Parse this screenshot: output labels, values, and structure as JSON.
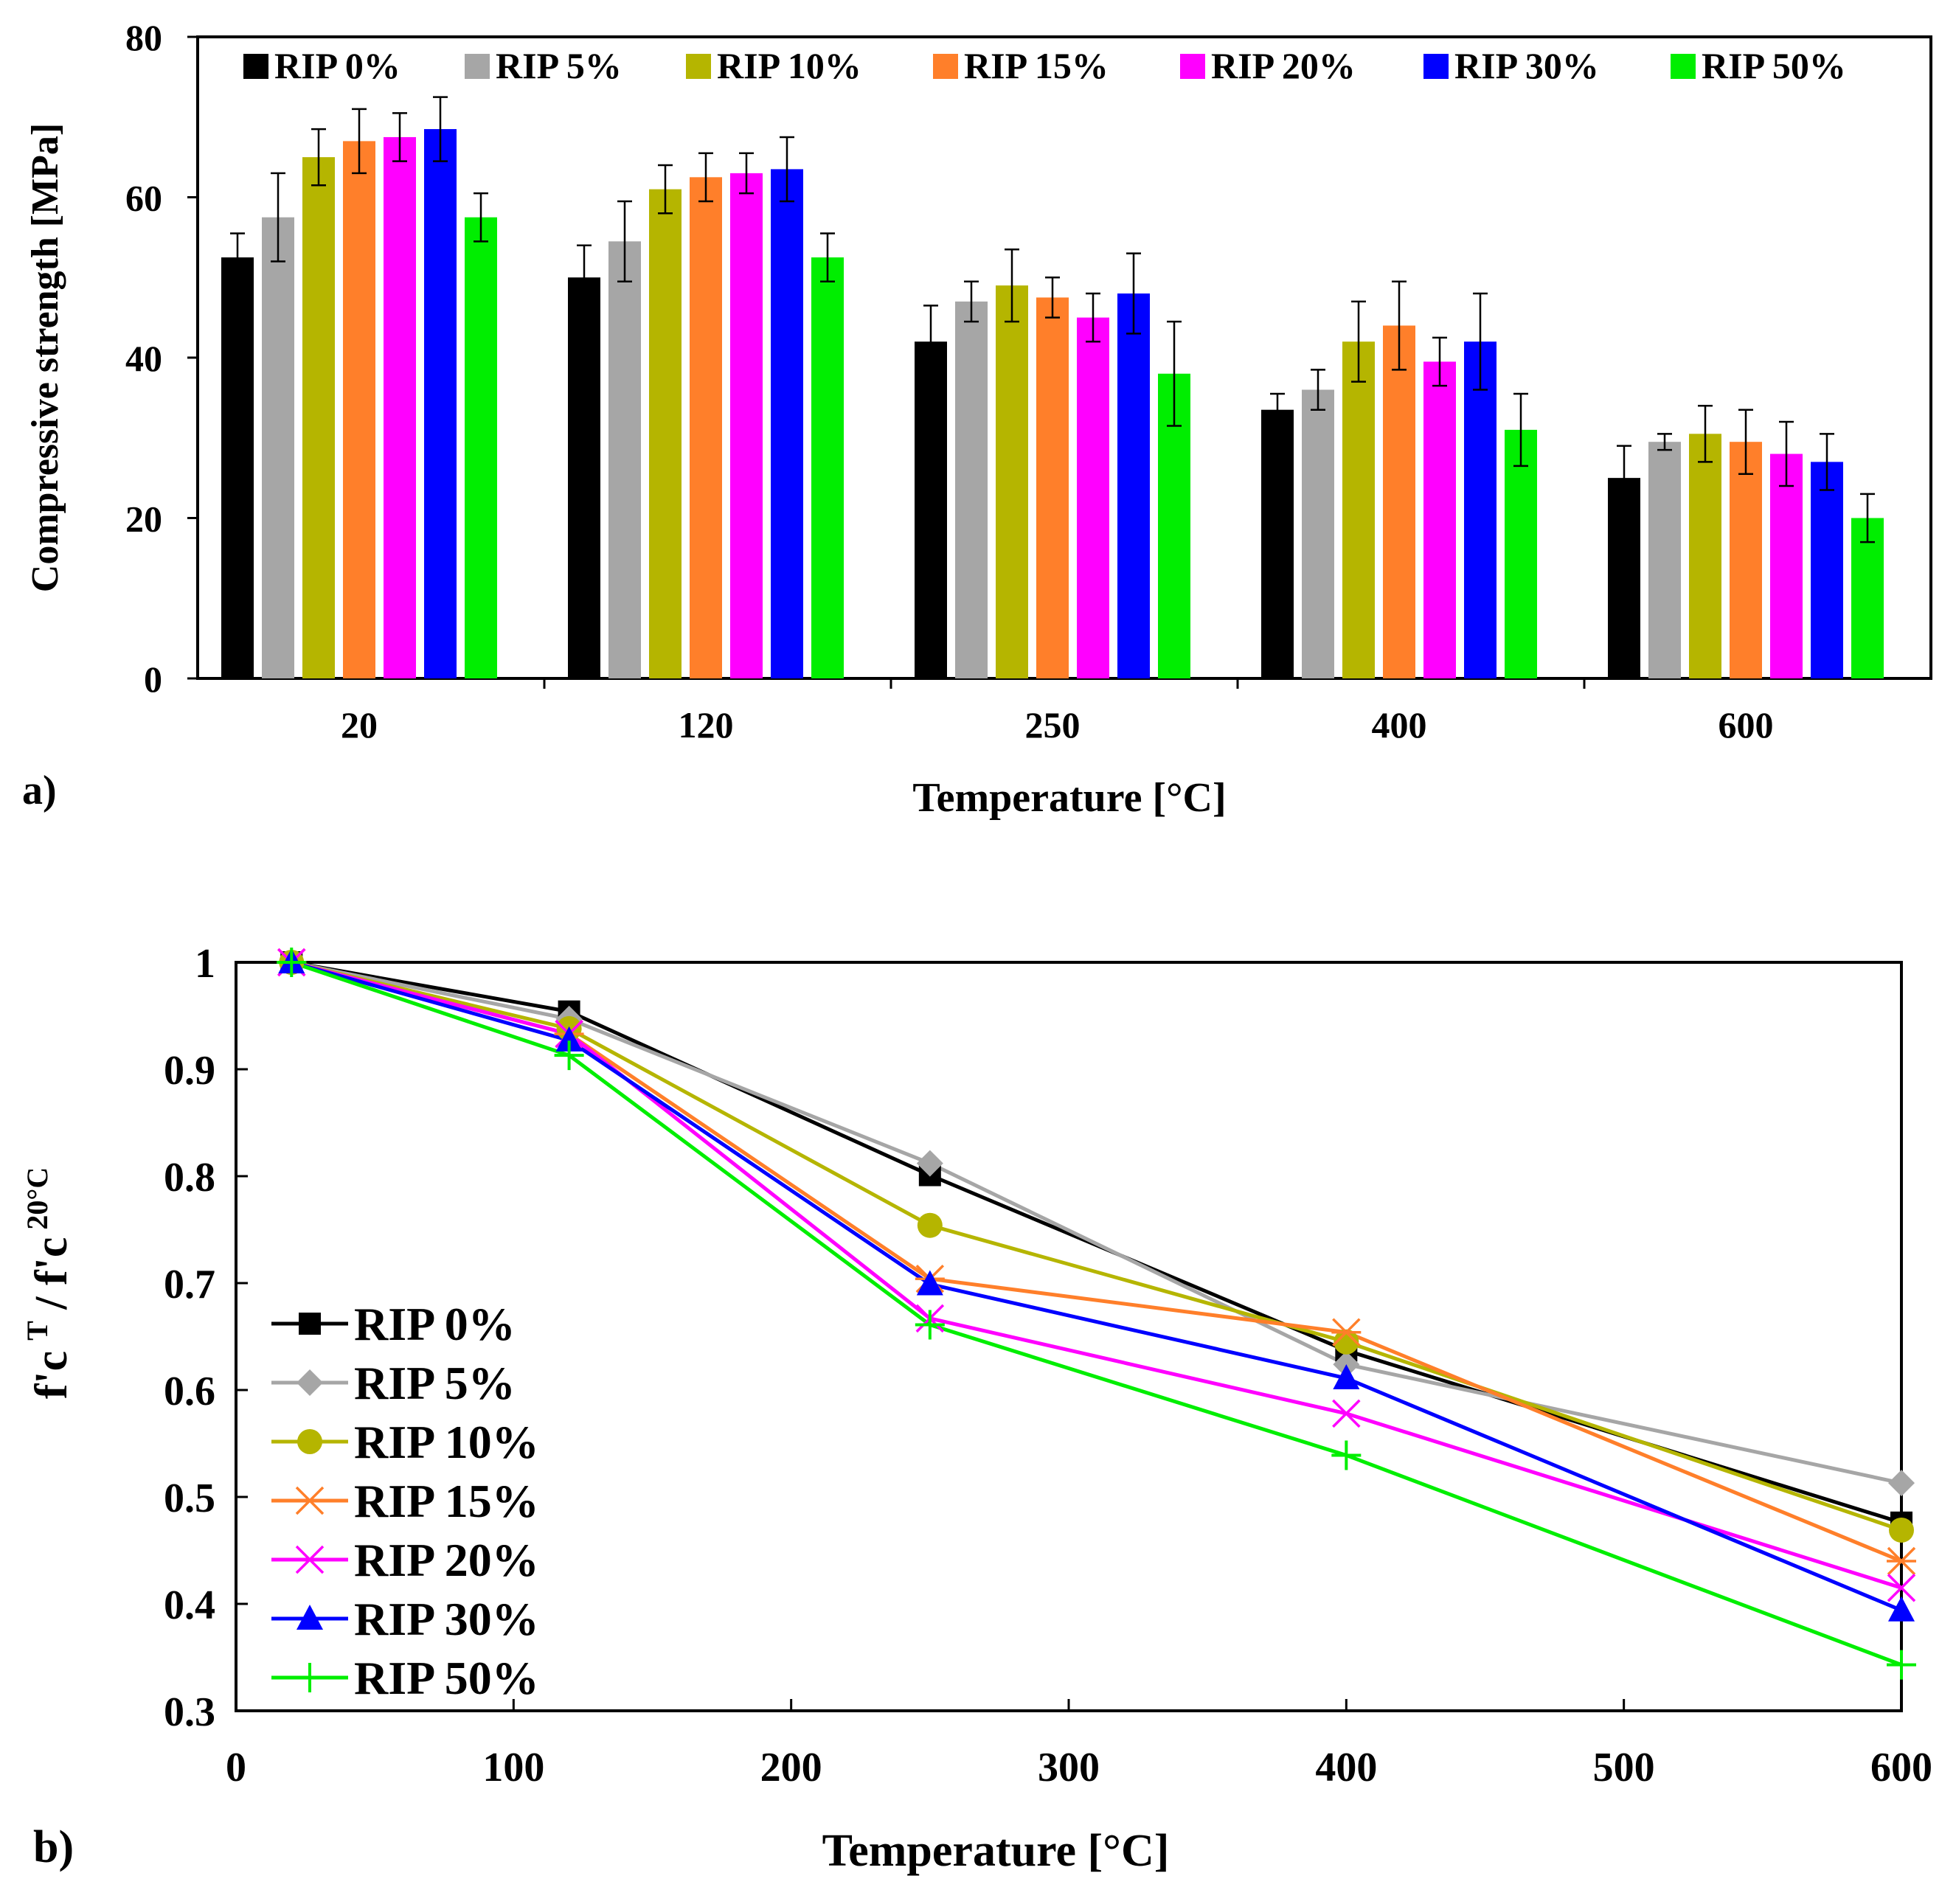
{
  "chart_data": [
    {
      "panel_label": "a)",
      "type": "bar",
      "xlabel": "Temperature [°C]",
      "ylabel": "Compressive strength [MPa]",
      "ylim": [
        0,
        80
      ],
      "yticks": [
        "0",
        "20",
        "40",
        "60",
        "80"
      ],
      "categories": [
        "20",
        "120",
        "250",
        "400",
        "600"
      ],
      "legend_position": "top",
      "series": [
        {
          "name": "RIP 0%",
          "color": "#000000",
          "values": [
            52.5,
            50,
            42,
            33.5,
            25
          ],
          "errors": [
            3,
            4,
            4.5,
            2,
            4
          ]
        },
        {
          "name": "RIP 5%",
          "color": "#a6a6a6",
          "values": [
            57.5,
            54.5,
            47,
            36,
            29.5
          ],
          "errors": [
            5.5,
            5,
            2.5,
            2.5,
            1
          ]
        },
        {
          "name": "RIP 10%",
          "color": "#b5b500",
          "values": [
            65,
            61,
            49,
            42,
            30.5
          ],
          "errors": [
            3.5,
            3,
            4.5,
            5,
            3.5
          ]
        },
        {
          "name": "RIP 15%",
          "color": "#ff7f2a",
          "values": [
            67,
            62.5,
            47.5,
            44,
            29.5
          ],
          "errors": [
            4,
            3,
            2.5,
            5.5,
            4
          ]
        },
        {
          "name": "RIP 20%",
          "color": "#ff00ff",
          "values": [
            67.5,
            63,
            45,
            39.5,
            28
          ],
          "errors": [
            3,
            2.5,
            3,
            3,
            4
          ]
        },
        {
          "name": "RIP 30%",
          "color": "#0000ff",
          "values": [
            68.5,
            63.5,
            48,
            42,
            27
          ],
          "errors": [
            4,
            4,
            5,
            6,
            3.5
          ]
        },
        {
          "name": "RIP 50%",
          "color": "#00ee00",
          "values": [
            57.5,
            52.5,
            38,
            31,
            20
          ],
          "errors": [
            3,
            3,
            6.5,
            4.5,
            3
          ]
        }
      ]
    },
    {
      "panel_label": "b)",
      "type": "line",
      "xlabel": "Temperature [°C]",
      "ylabel_main": "f'c",
      "ylabel_sup1": "T",
      "ylabel_sep": " / f'c",
      "ylabel_sup2": "20°C",
      "xlim": [
        0,
        600
      ],
      "ylim": [
        0.3,
        1.0
      ],
      "xticks": [
        "0",
        "100",
        "200",
        "300",
        "400",
        "500",
        "600"
      ],
      "yticks": [
        "0.3",
        "0.4",
        "0.5",
        "0.6",
        "0.7",
        "0.8",
        "0.9",
        "1"
      ],
      "x": [
        20,
        120,
        250,
        400,
        600
      ],
      "legend_position": "lower-left",
      "series": [
        {
          "name": "RIP 0%",
          "color": "#000000",
          "marker": "square",
          "values": [
            1.0,
            0.954,
            0.801,
            0.637,
            0.476
          ]
        },
        {
          "name": "RIP 5%",
          "color": "#a6a6a6",
          "marker": "diamond",
          "values": [
            1.0,
            0.947,
            0.812,
            0.624,
            0.513
          ]
        },
        {
          "name": "RIP 10%",
          "color": "#b5b500",
          "marker": "circle",
          "values": [
            1.0,
            0.938,
            0.754,
            0.645,
            0.469
          ]
        },
        {
          "name": "RIP 15%",
          "color": "#ff7f2a",
          "marker": "asterisk",
          "values": [
            1.0,
            0.933,
            0.704,
            0.654,
            0.44
          ]
        },
        {
          "name": "RIP 20%",
          "color": "#ff00ff",
          "marker": "x",
          "values": [
            1.0,
            0.933,
            0.667,
            0.578,
            0.415
          ]
        },
        {
          "name": "RIP 30%",
          "color": "#0000ff",
          "marker": "triangle",
          "values": [
            1.0,
            0.927,
            0.699,
            0.611,
            0.394
          ]
        },
        {
          "name": "RIP 50%",
          "color": "#00ee00",
          "marker": "plus",
          "values": [
            1.0,
            0.913,
            0.661,
            0.539,
            0.343
          ]
        }
      ]
    }
  ]
}
